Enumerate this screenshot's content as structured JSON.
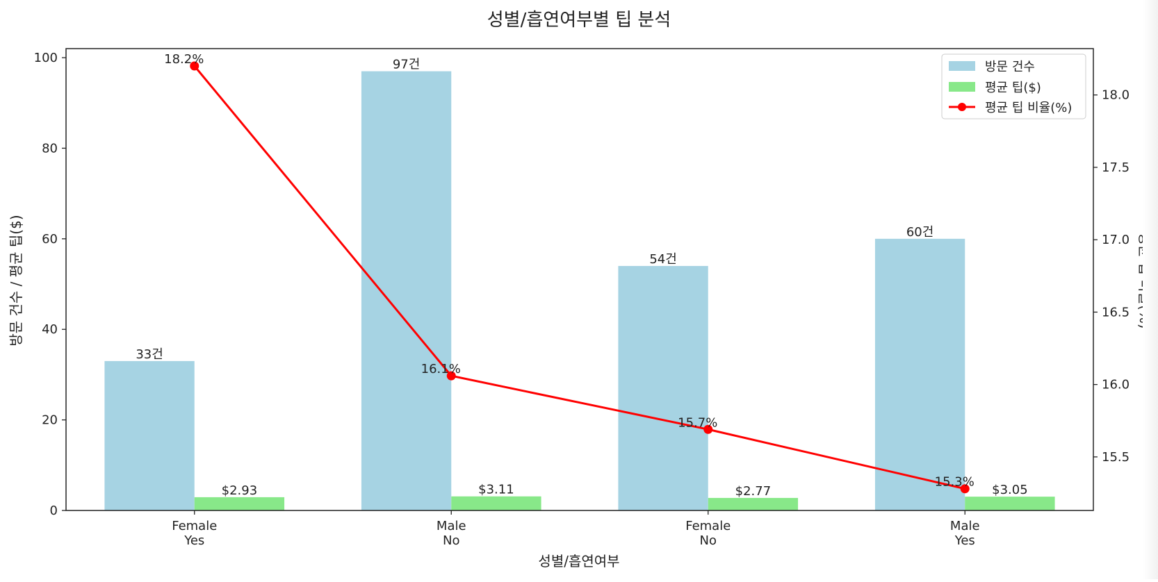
{
  "chart_data": {
    "type": "bar",
    "title": "성별/흡연여부별 팁 분석",
    "xlabel": "성별/흡연여부",
    "ylabel": "방문 건수 / 평균 팁($)",
    "y2label": "평균 팁 비율(%)",
    "categories": [
      {
        "line1": "Female",
        "line2": "Yes"
      },
      {
        "line1": "Male",
        "line2": "No"
      },
      {
        "line1": "Female",
        "line2": "No"
      },
      {
        "line1": "Male",
        "line2": "Yes"
      }
    ],
    "series": [
      {
        "name": "방문 건수",
        "kind": "bar",
        "axis": "left",
        "color": "#a6d3e3",
        "values": [
          33,
          97,
          54,
          60
        ],
        "labels": [
          "33건",
          "97건",
          "54건",
          "60건"
        ]
      },
      {
        "name": "평균 팁($)",
        "kind": "bar",
        "axis": "left",
        "color": "#88e889",
        "values": [
          2.93,
          3.11,
          2.77,
          3.05
        ],
        "labels": [
          "$2.93",
          "$3.11",
          "$2.77",
          "$3.05"
        ]
      },
      {
        "name": "평균 팁 비율(%)",
        "kind": "line",
        "axis": "right",
        "color": "#ff0000",
        "values": [
          18.2,
          16.06,
          15.69,
          15.28
        ],
        "labels": [
          "18.2%",
          "16.1%",
          "15.7%",
          "15.3%"
        ]
      }
    ],
    "ylim": [
      0,
      102
    ],
    "y2lim": [
      15.13,
      18.32
    ],
    "yticks": [
      0,
      20,
      40,
      60,
      80,
      100
    ],
    "y2ticks": [
      15.5,
      16.0,
      16.5,
      17.0,
      17.5,
      18.0
    ],
    "y2tick_labels": [
      "15.5",
      "16.0",
      "16.5",
      "17.0",
      "17.5",
      "18.0"
    ],
    "grid": false,
    "legend_position": "top-right"
  }
}
